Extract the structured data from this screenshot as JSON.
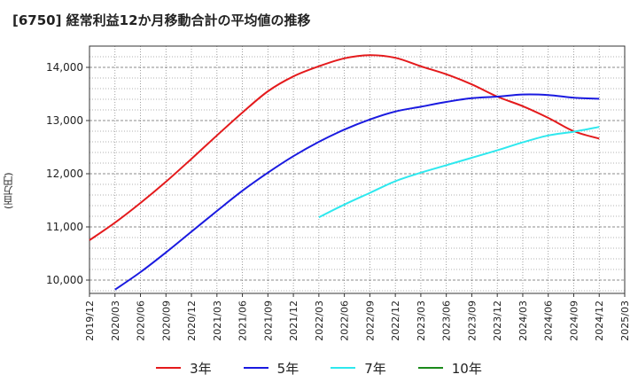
{
  "chart_data": {
    "type": "line",
    "title": "[6750]  経常利益12か月移動合計の平均値の推移",
    "ylabel": "(百万円)",
    "xlabel": "",
    "ylim": [
      9750,
      14400
    ],
    "x_ticks": [
      "2019/12",
      "2020/03",
      "2020/06",
      "2020/09",
      "2020/12",
      "2021/03",
      "2021/06",
      "2021/09",
      "2021/12",
      "2022/03",
      "2022/06",
      "2022/09",
      "2022/12",
      "2023/03",
      "2023/06",
      "2023/09",
      "2023/12",
      "2024/03",
      "2024/06",
      "2024/09",
      "2024/12",
      "2025/03"
    ],
    "y_ticks": [
      10000,
      11000,
      12000,
      13000,
      14000
    ],
    "y_tick_labels": [
      "10,000",
      "11,000",
      "12,000",
      "13,000",
      "14,000"
    ],
    "grid": true,
    "legend_position": "bottom",
    "series": [
      {
        "name": "3年",
        "color": "#e41a1c",
        "points": [
          [
            "2019/12",
            10750
          ],
          [
            "2020/03",
            11080
          ],
          [
            "2020/06",
            11450
          ],
          [
            "2020/09",
            11850
          ],
          [
            "2020/12",
            12280
          ],
          [
            "2021/03",
            12720
          ],
          [
            "2021/06",
            13150
          ],
          [
            "2021/09",
            13550
          ],
          [
            "2021/12",
            13830
          ],
          [
            "2022/03",
            14020
          ],
          [
            "2022/06",
            14170
          ],
          [
            "2022/09",
            14230
          ],
          [
            "2022/12",
            14180
          ],
          [
            "2023/03",
            14020
          ],
          [
            "2023/06",
            13870
          ],
          [
            "2023/09",
            13680
          ],
          [
            "2023/12",
            13450
          ],
          [
            "2024/03",
            13270
          ],
          [
            "2024/06",
            13050
          ],
          [
            "2024/09",
            12800
          ],
          [
            "2024/12",
            12660
          ]
        ]
      },
      {
        "name": "5年",
        "color": "#1a1ae0",
        "points": [
          [
            "2020/03",
            9820
          ],
          [
            "2020/06",
            10150
          ],
          [
            "2020/09",
            10520
          ],
          [
            "2020/12",
            10910
          ],
          [
            "2021/03",
            11300
          ],
          [
            "2021/06",
            11680
          ],
          [
            "2021/09",
            12020
          ],
          [
            "2021/12",
            12330
          ],
          [
            "2022/03",
            12600
          ],
          [
            "2022/06",
            12830
          ],
          [
            "2022/09",
            13020
          ],
          [
            "2022/12",
            13170
          ],
          [
            "2023/03",
            13260
          ],
          [
            "2023/06",
            13350
          ],
          [
            "2023/09",
            13420
          ],
          [
            "2023/12",
            13450
          ],
          [
            "2024/03",
            13490
          ],
          [
            "2024/06",
            13480
          ],
          [
            "2024/09",
            13430
          ],
          [
            "2024/12",
            13410
          ]
        ]
      },
      {
        "name": "7年",
        "color": "#2ee8ee",
        "points": [
          [
            "2022/03",
            11180
          ],
          [
            "2022/06",
            11420
          ],
          [
            "2022/09",
            11640
          ],
          [
            "2022/12",
            11860
          ],
          [
            "2023/03",
            12020
          ],
          [
            "2023/06",
            12160
          ],
          [
            "2023/09",
            12300
          ],
          [
            "2023/12",
            12440
          ],
          [
            "2024/03",
            12590
          ],
          [
            "2024/06",
            12720
          ],
          [
            "2024/09",
            12790
          ],
          [
            "2024/12",
            12880
          ]
        ]
      },
      {
        "name": "10年",
        "color": "#1b8a1b",
        "points": []
      }
    ]
  }
}
